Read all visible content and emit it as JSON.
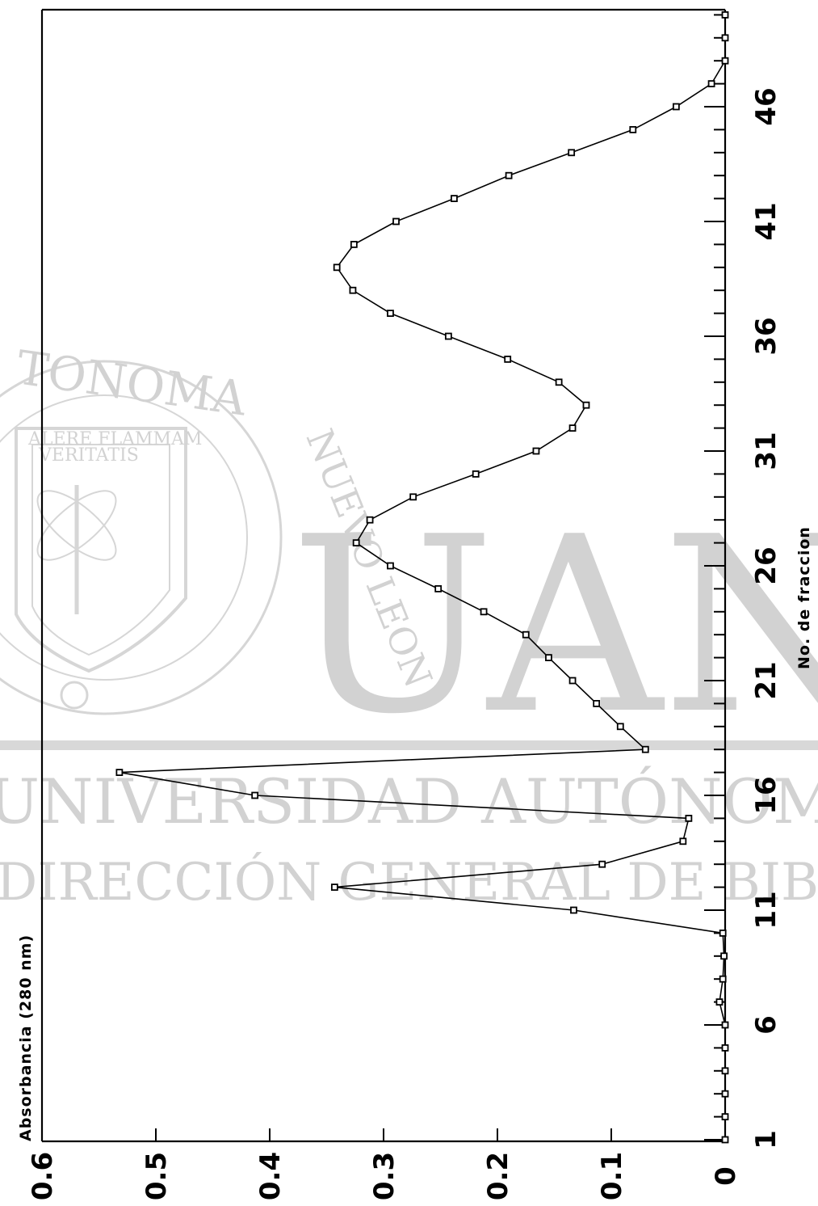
{
  "watermark": {
    "seal_ring_top": "TONOMA",
    "seal_ring_right": "NUEVO LEON",
    "seal_motto_1": "ALERE FLAMMAM",
    "seal_motto_2": "VERITATIS",
    "logo": "UANL",
    "line1": "UNIVERSIDAD AUTÓNOMA DE NUEVO LEÓN",
    "line2": "DIRECCIÓN GENERAL DE BIBLIOTECAS"
  },
  "chart_data": {
    "type": "line",
    "orientation": "rotated-90-clockwise",
    "xlabel": "No. de fraccion",
    "ylabel": "Absorbancia (280 nm)",
    "xlim": [
      1,
      50
    ],
    "ylim": [
      0,
      0.6
    ],
    "x_ticks": [
      1,
      6,
      11,
      16,
      21,
      26,
      31,
      36,
      41,
      46
    ],
    "y_ticks": [
      0,
      0.1,
      0.2,
      0.3,
      0.4,
      0.5,
      0.6
    ],
    "y_tick_labels": [
      "0",
      "0.1",
      "0.2",
      "0.3",
      "0.4",
      "0.5",
      "0.6"
    ],
    "grid": false,
    "series": [
      {
        "marker": "square",
        "color": "#000000",
        "x": [
          1,
          2,
          3,
          4,
          5,
          6,
          7,
          8,
          9,
          10,
          11,
          12,
          13,
          14,
          15,
          16,
          17,
          18,
          19,
          20,
          21,
          22,
          23,
          24,
          25,
          26,
          27,
          28,
          29,
          30,
          31,
          32,
          33,
          34,
          35,
          36,
          37,
          38,
          39,
          40,
          41,
          42,
          43,
          44,
          45,
          46,
          47,
          48,
          49,
          50
        ],
        "y": [
          0.0,
          0.0,
          0.0,
          0.0,
          0.0,
          0.0,
          0.005,
          0.002,
          0.001,
          0.002,
          0.133,
          0.343,
          0.108,
          0.037,
          0.032,
          0.413,
          0.532,
          0.07,
          0.092,
          0.113,
          0.134,
          0.155,
          0.175,
          0.212,
          0.252,
          0.294,
          0.324,
          0.312,
          0.274,
          0.219,
          0.166,
          0.134,
          0.122,
          0.146,
          0.191,
          0.243,
          0.294,
          0.327,
          0.341,
          0.326,
          0.289,
          0.238,
          0.19,
          0.135,
          0.081,
          0.043,
          0.012,
          0.0,
          0.0,
          0.0
        ]
      }
    ]
  }
}
